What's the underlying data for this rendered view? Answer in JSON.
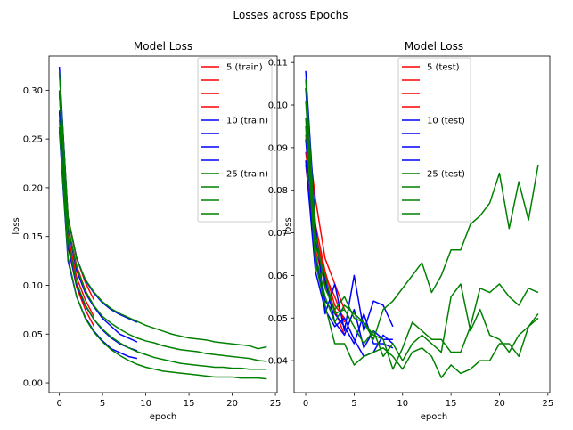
{
  "suptitle": "Losses across Epochs",
  "chart_data": [
    {
      "type": "line",
      "title": "Model Loss",
      "xlabel": "epoch",
      "ylabel": "loss",
      "xlim": [
        -1.2,
        25.2
      ],
      "ylim": [
        -0.01,
        0.335
      ],
      "xticks": [
        0,
        5,
        10,
        15,
        20,
        25
      ],
      "yticks": [
        0.0,
        0.05,
        0.1,
        0.15,
        0.2,
        0.25,
        0.3
      ],
      "ytick_format": 2,
      "legend_position": "upper right",
      "legend": [
        {
          "label": "5 (train)",
          "color": "#ff0000"
        },
        {
          "label": "",
          "color": "#ff0000"
        },
        {
          "label": "",
          "color": "#ff0000"
        },
        {
          "label": "",
          "color": "#ff0000"
        },
        {
          "label": "10 (train)",
          "color": "#0000ff"
        },
        {
          "label": "",
          "color": "#0000ff"
        },
        {
          "label": "",
          "color": "#0000ff"
        },
        {
          "label": "",
          "color": "#0000ff"
        },
        {
          "label": "25 (train)",
          "color": "#008000"
        },
        {
          "label": "",
          "color": "#008000"
        },
        {
          "label": "",
          "color": "#008000"
        },
        {
          "label": "",
          "color": "#008000"
        }
      ],
      "series": [
        {
          "color": "#ff0000",
          "y": [
            0.3,
            0.16,
            0.12,
            0.095,
            0.078
          ]
        },
        {
          "color": "#ff0000",
          "y": [
            0.318,
            0.17,
            0.128,
            0.103,
            0.085
          ]
        },
        {
          "color": "#ff0000",
          "y": [
            0.28,
            0.15,
            0.108,
            0.085,
            0.068
          ]
        },
        {
          "color": "#ff0000",
          "y": [
            0.262,
            0.14,
            0.098,
            0.075,
            0.058
          ]
        },
        {
          "color": "#0000ff",
          "y": [
            0.324,
            0.168,
            0.128,
            0.105,
            0.092,
            0.082,
            0.075,
            0.07,
            0.066,
            0.062
          ]
        },
        {
          "color": "#0000ff",
          "y": [
            0.296,
            0.158,
            0.115,
            0.092,
            0.078,
            0.066,
            0.058,
            0.05,
            0.046,
            0.042
          ]
        },
        {
          "color": "#0000ff",
          "y": [
            0.278,
            0.14,
            0.1,
            0.079,
            0.065,
            0.054,
            0.046,
            0.04,
            0.036,
            0.033
          ]
        },
        {
          "color": "#0000ff",
          "y": [
            0.258,
            0.125,
            0.088,
            0.067,
            0.053,
            0.043,
            0.035,
            0.031,
            0.027,
            0.025
          ]
        },
        {
          "color": "#008000",
          "y": [
            0.318,
            0.17,
            0.127,
            0.106,
            0.093,
            0.083,
            0.076,
            0.071,
            0.067,
            0.063,
            0.059,
            0.056,
            0.053,
            0.05,
            0.048,
            0.046,
            0.045,
            0.044,
            0.042,
            0.041,
            0.04,
            0.039,
            0.038,
            0.035,
            0.037
          ]
        },
        {
          "color": "#008000",
          "y": [
            0.298,
            0.16,
            0.118,
            0.094,
            0.079,
            0.068,
            0.061,
            0.055,
            0.05,
            0.046,
            0.043,
            0.041,
            0.038,
            0.036,
            0.034,
            0.033,
            0.032,
            0.03,
            0.029,
            0.028,
            0.027,
            0.026,
            0.025,
            0.023,
            0.022
          ]
        },
        {
          "color": "#008000",
          "y": [
            0.27,
            0.145,
            0.102,
            0.08,
            0.065,
            0.055,
            0.047,
            0.041,
            0.036,
            0.032,
            0.029,
            0.026,
            0.024,
            0.022,
            0.02,
            0.019,
            0.018,
            0.017,
            0.016,
            0.016,
            0.015,
            0.015,
            0.014,
            0.014,
            0.014
          ]
        },
        {
          "color": "#008000",
          "y": [
            0.262,
            0.128,
            0.088,
            0.066,
            0.052,
            0.042,
            0.034,
            0.028,
            0.023,
            0.019,
            0.016,
            0.014,
            0.012,
            0.011,
            0.01,
            0.009,
            0.008,
            0.007,
            0.006,
            0.006,
            0.006,
            0.005,
            0.005,
            0.005,
            0.004
          ]
        }
      ]
    },
    {
      "type": "line",
      "title": "Model Loss",
      "xlabel": "epoch",
      "ylabel": "loss",
      "xlim": [
        -1.2,
        25.2
      ],
      "ylim": [
        0.0325,
        0.1115
      ],
      "xticks": [
        0,
        5,
        10,
        15,
        20,
        25
      ],
      "yticks": [
        0.04,
        0.05,
        0.06,
        0.07,
        0.08,
        0.09,
        0.1,
        0.11
      ],
      "ytick_format": 2,
      "legend_position": "upper center",
      "legend": [
        {
          "label": "5 (test)",
          "color": "#ff0000"
        },
        {
          "label": "",
          "color": "#ff0000"
        },
        {
          "label": "",
          "color": "#ff0000"
        },
        {
          "label": "",
          "color": "#ff0000"
        },
        {
          "label": "10 (test)",
          "color": "#0000ff"
        },
        {
          "label": "",
          "color": "#0000ff"
        },
        {
          "label": "",
          "color": "#0000ff"
        },
        {
          "label": "",
          "color": "#0000ff"
        },
        {
          "label": "25 (test)",
          "color": "#008000"
        },
        {
          "label": "",
          "color": "#008000"
        },
        {
          "label": "",
          "color": "#008000"
        },
        {
          "label": "",
          "color": "#008000"
        }
      ],
      "series": [
        {
          "color": "#ff0000",
          "y": [
            0.097,
            0.078,
            0.064,
            0.058,
            0.052
          ]
        },
        {
          "color": "#ff0000",
          "y": [
            0.089,
            0.07,
            0.06,
            0.055,
            0.049
          ]
        },
        {
          "color": "#ff0000",
          "y": [
            0.086,
            0.066,
            0.058,
            0.052,
            0.046
          ]
        },
        {
          "color": "#ff0000",
          "y": [
            0.093,
            0.072,
            0.061,
            0.053,
            0.05
          ]
        },
        {
          "color": "#0000ff",
          "y": [
            0.108,
            0.072,
            0.051,
            0.058,
            0.047,
            0.06,
            0.047,
            0.054,
            0.053,
            0.048
          ]
        },
        {
          "color": "#0000ff",
          "y": [
            0.104,
            0.068,
            0.059,
            0.049,
            0.046,
            0.052,
            0.043,
            0.047,
            0.045,
            0.045
          ]
        },
        {
          "color": "#0000ff",
          "y": [
            0.092,
            0.064,
            0.054,
            0.051,
            0.048,
            0.044,
            0.051,
            0.044,
            0.044,
            0.043
          ]
        },
        {
          "color": "#0000ff",
          "y": [
            0.087,
            0.061,
            0.052,
            0.048,
            0.05,
            0.045,
            0.041,
            0.042,
            0.046,
            0.044
          ]
        },
        {
          "color": "#008000",
          "y": [
            0.106,
            0.07,
            0.057,
            0.052,
            0.055,
            0.05,
            0.049,
            0.045,
            0.052,
            0.054,
            0.057,
            0.06,
            0.063,
            0.056,
            0.06,
            0.066,
            0.066,
            0.072,
            0.074,
            0.077,
            0.084,
            0.071,
            0.082,
            0.073,
            0.086
          ]
        },
        {
          "color": "#008000",
          "y": [
            0.101,
            0.067,
            0.06,
            0.051,
            0.052,
            0.048,
            0.044,
            0.047,
            0.041,
            0.044,
            0.04,
            0.044,
            0.046,
            0.044,
            0.042,
            0.055,
            0.058,
            0.047,
            0.052,
            0.046,
            0.045,
            0.042,
            0.046,
            0.048,
            0.051
          ]
        },
        {
          "color": "#008000",
          "y": [
            0.097,
            0.065,
            0.055,
            0.049,
            0.053,
            0.051,
            0.049,
            0.046,
            0.045,
            0.038,
            0.043,
            0.049,
            0.047,
            0.045,
            0.045,
            0.042,
            0.042,
            0.048,
            0.057,
            0.056,
            0.058,
            0.055,
            0.053,
            0.057,
            0.056
          ]
        },
        {
          "color": "#008000",
          "y": [
            0.095,
            0.063,
            0.053,
            0.044,
            0.044,
            0.039,
            0.041,
            0.042,
            0.043,
            0.041,
            0.038,
            0.042,
            0.043,
            0.041,
            0.036,
            0.039,
            0.037,
            0.038,
            0.04,
            0.04,
            0.044,
            0.044,
            0.041,
            0.048,
            0.05
          ]
        }
      ]
    }
  ]
}
